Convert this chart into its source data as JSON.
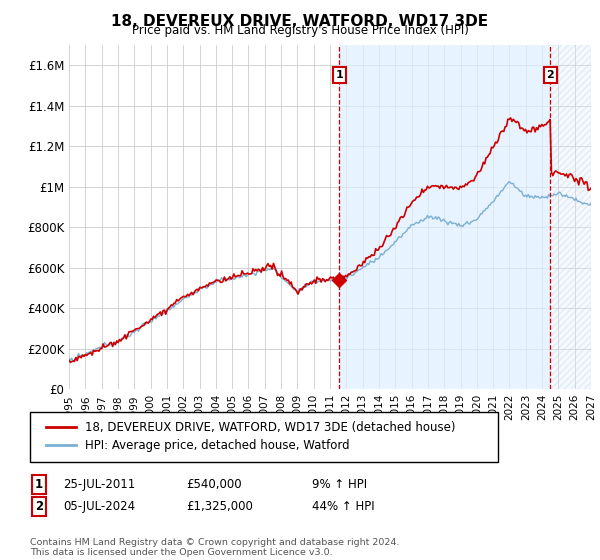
{
  "title": "18, DEVEREUX DRIVE, WATFORD, WD17 3DE",
  "subtitle": "Price paid vs. HM Land Registry's House Price Index (HPI)",
  "ylim": [
    0,
    1700000
  ],
  "yticks": [
    0,
    200000,
    400000,
    600000,
    800000,
    1000000,
    1200000,
    1400000,
    1600000
  ],
  "ytick_labels": [
    "£0",
    "£200K",
    "£400K",
    "£600K",
    "£800K",
    "£1M",
    "£1.2M",
    "£1.4M",
    "£1.6M"
  ],
  "background_color": "#ffffff",
  "grid_color": "#cccccc",
  "transaction1": {
    "date": "25-JUL-2011",
    "price": 540000,
    "hpi_diff": "9% ↑ HPI",
    "label": "1",
    "x": 2011.57
  },
  "transaction2": {
    "date": "05-JUL-2024",
    "price": 1325000,
    "hpi_diff": "44% ↑ HPI",
    "label": "2",
    "x": 2024.51
  },
  "legend_line1": "18, DEVEREUX DRIVE, WATFORD, WD17 3DE (detached house)",
  "legend_line2": "HPI: Average price, detached house, Watford",
  "footer": "Contains HM Land Registry data © Crown copyright and database right 2024.\nThis data is licensed under the Open Government Licence v3.0.",
  "line_color_red": "#cc0000",
  "line_color_blue": "#7bafd4",
  "shade_color": "#ddeeff",
  "xmin": 1995,
  "xmax": 2027
}
